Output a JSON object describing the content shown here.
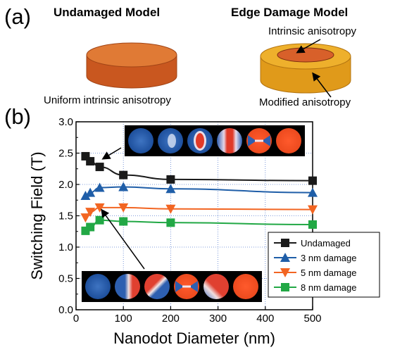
{
  "panel_a": {
    "label": "(a)",
    "undamaged_title": "Undamaged Model",
    "undamaged_caption": "Uniform intrinsic anisotropy",
    "edge_title": "Edge Damage Model",
    "edge_inner_caption": "Intrinsic anisotropy",
    "edge_outer_caption": "Modified anisotropy",
    "colors": {
      "undamaged": "#d96a2a",
      "outer_ring": "#e6a21e",
      "inner_core": "#d45f24"
    }
  },
  "panel_b": {
    "label": "(b)"
  },
  "chart_data": {
    "type": "line",
    "xlabel": "Nanodot Diameter (nm)",
    "ylabel": "Switching Field (T)",
    "xlim": [
      0,
      500
    ],
    "ylim": [
      0,
      3.0
    ],
    "x_ticks": [
      "0",
      "100",
      "200",
      "300",
      "400",
      "500"
    ],
    "y_ticks": [
      "0.0",
      "0.5",
      "1.0",
      "1.5",
      "2.0",
      "2.5",
      "3.0"
    ],
    "grid": true,
    "legend_position": "lower-right",
    "series": [
      {
        "name": "Undamaged",
        "color": "#1a1a1a",
        "marker": "square",
        "x": [
          20,
          30,
          50,
          100,
          200,
          500
        ],
        "y": [
          2.45,
          2.37,
          2.28,
          2.15,
          2.08,
          2.06
        ]
      },
      {
        "name": "3 nm damage",
        "color": "#1f5ea8",
        "marker": "triangle-up",
        "x": [
          20,
          30,
          50,
          100,
          200,
          500
        ],
        "y": [
          1.82,
          1.87,
          1.95,
          1.96,
          1.93,
          1.87
        ]
      },
      {
        "name": "5 nm damage",
        "color": "#f26522",
        "marker": "triangle-down",
        "x": [
          20,
          30,
          50,
          100,
          200,
          500
        ],
        "y": [
          1.47,
          1.56,
          1.63,
          1.63,
          1.61,
          1.6
        ]
      },
      {
        "name": "8 nm damage",
        "color": "#22a845",
        "marker": "square",
        "x": [
          20,
          30,
          50,
          100,
          200,
          500
        ],
        "y": [
          1.26,
          1.32,
          1.43,
          1.41,
          1.39,
          1.36
        ]
      }
    ]
  },
  "insets": {
    "upper": {
      "frames": [
        "blue",
        "blue-faint",
        "red-oval",
        "red-band",
        "red-cross",
        "red"
      ]
    },
    "lower": {
      "frames": [
        "blue",
        "red-stripe",
        "red-diag",
        "red-cross",
        "red-mix",
        "red"
      ]
    }
  }
}
